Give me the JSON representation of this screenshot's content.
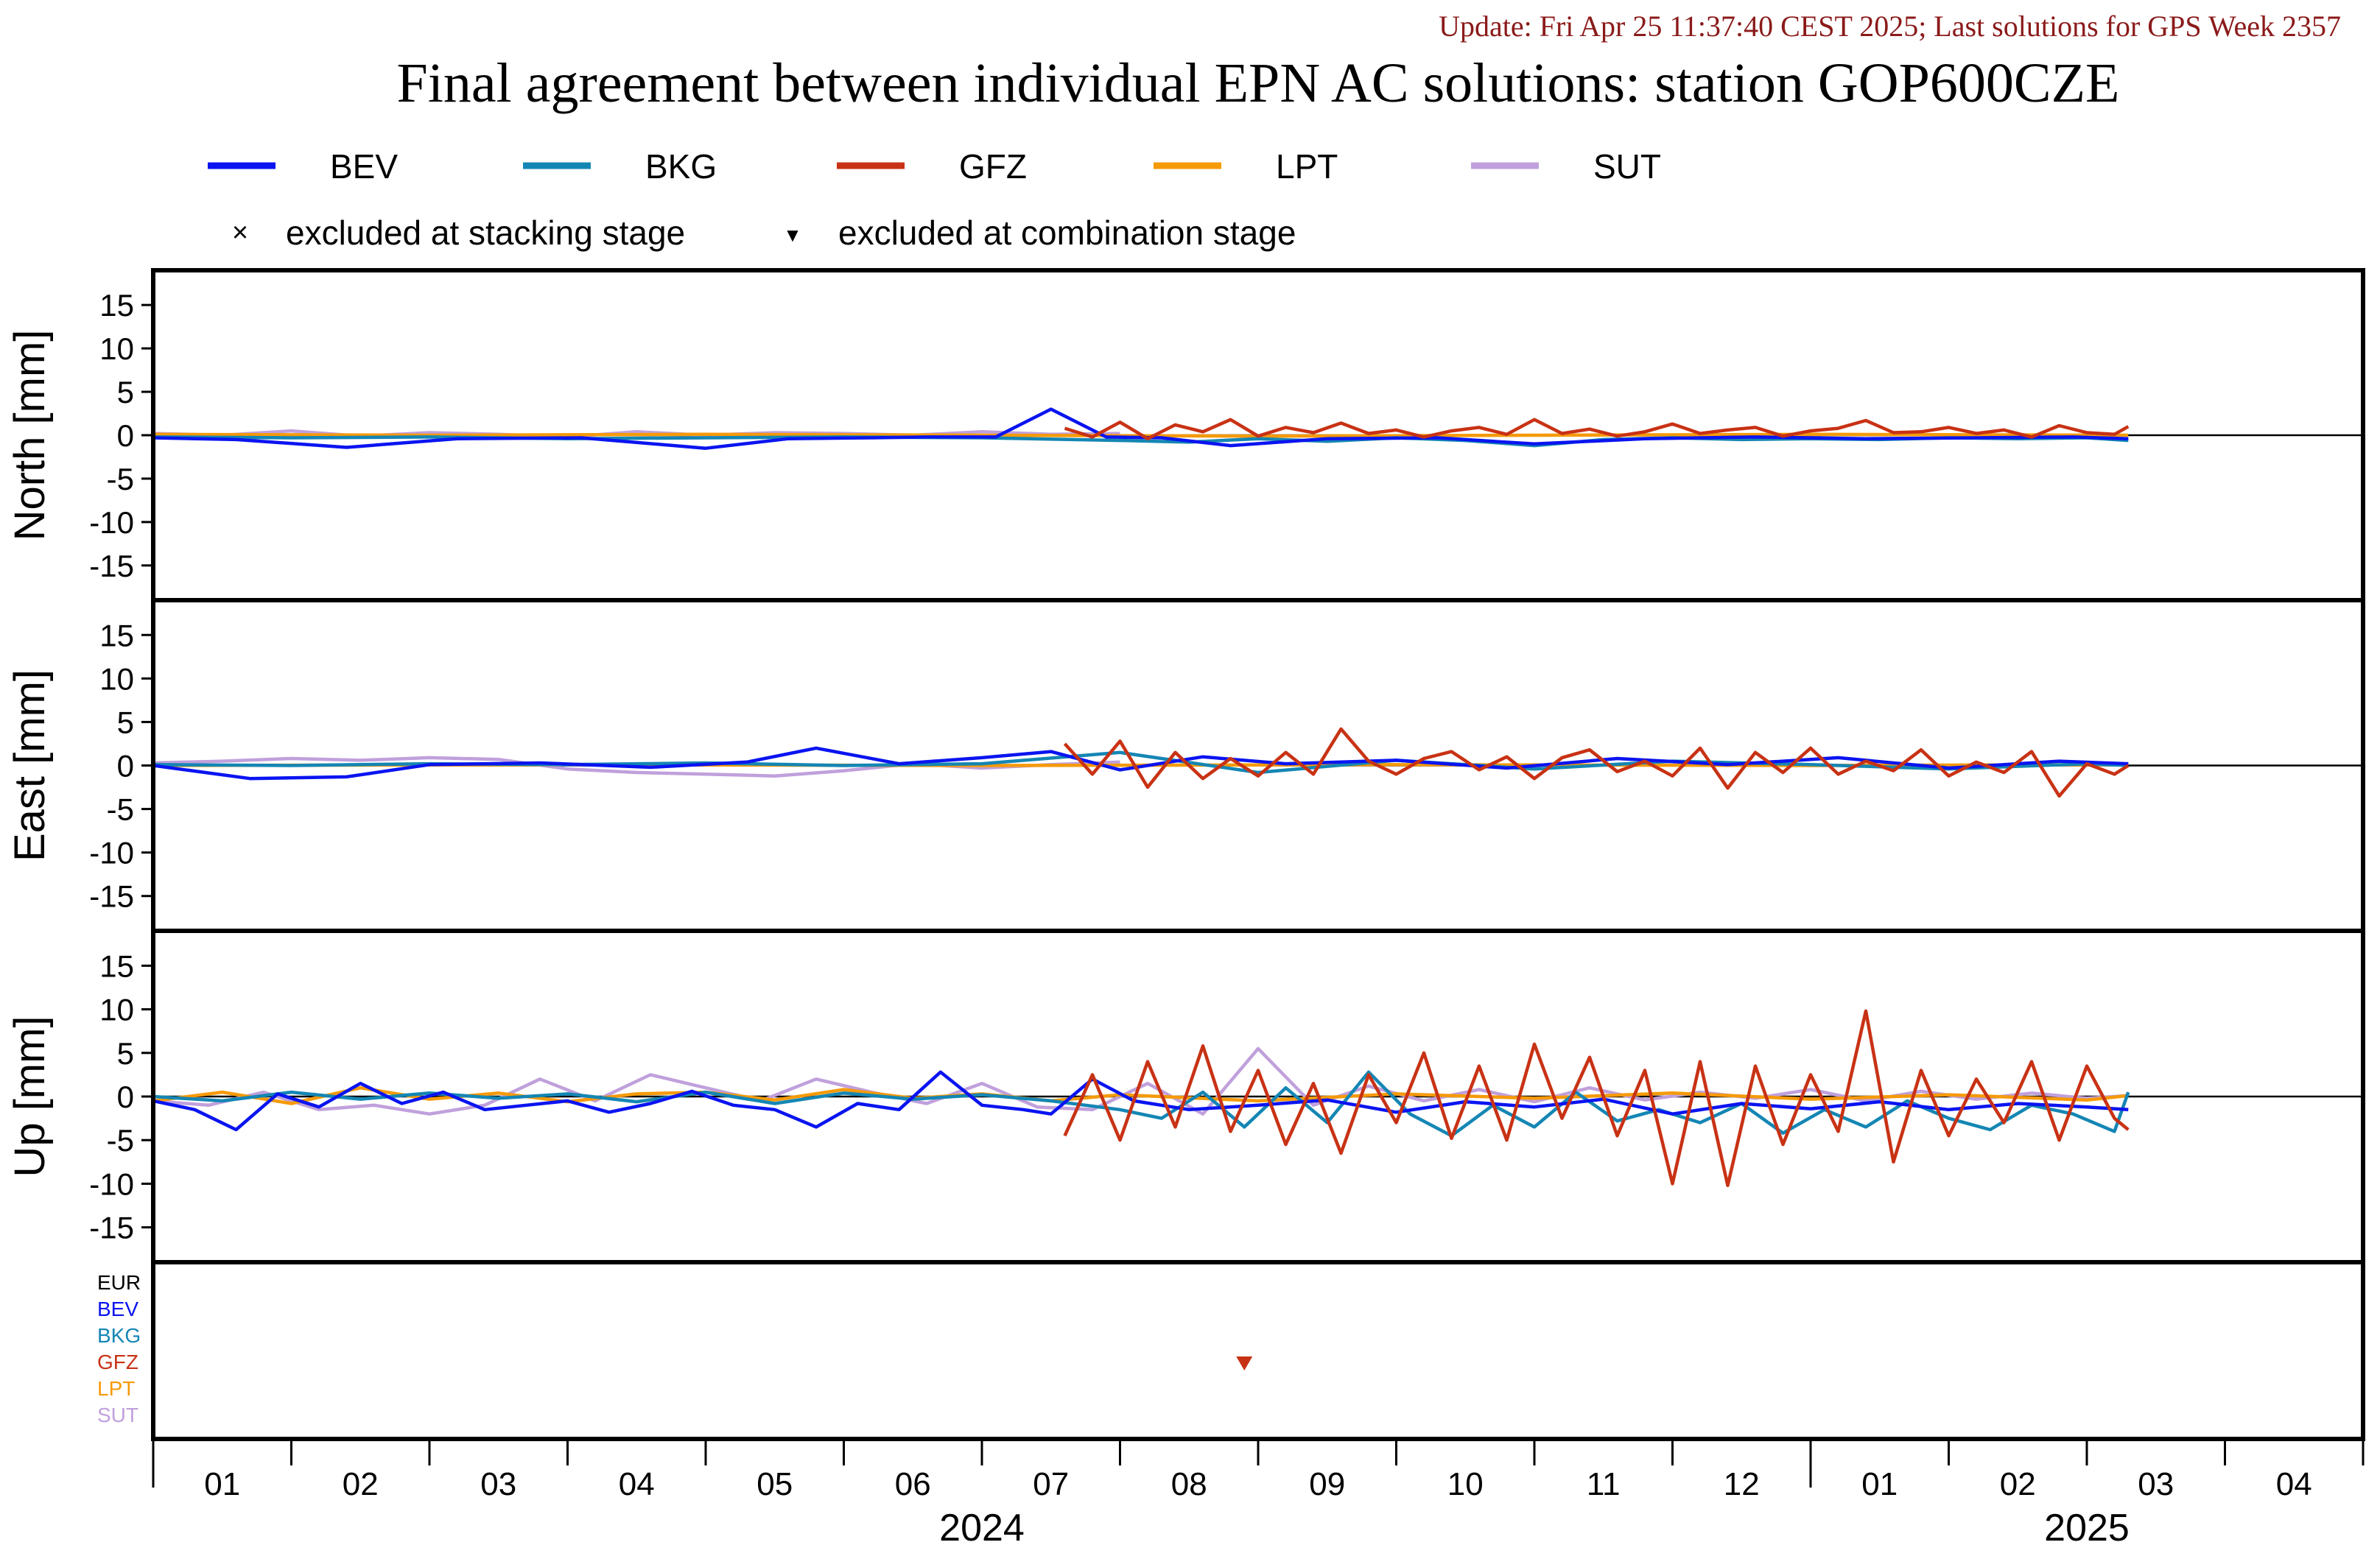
{
  "header": {
    "update": "Update: Fri Apr 25 11:37:40 CEST 2025; Last solutions for GPS Week 2357",
    "title": "Final agreement between individual EPN AC solutions: station GOP600CZE"
  },
  "colors": {
    "update": "#8b1a1a",
    "BEV": "#0a14f0",
    "BKG": "#1486b4",
    "GFZ": "#c83214",
    "LPT": "#f59a0a",
    "SUT": "#c0a0dc",
    "EUR": "#000000"
  },
  "legend": {
    "series": [
      "BEV",
      "BKG",
      "GFZ",
      "LPT",
      "SUT"
    ],
    "excluded_stacking": "excluded at stacking stage",
    "excluded_combination": "excluded at combination stage",
    "marker_x": "×",
    "marker_tri": "▼"
  },
  "chart_data": {
    "type": "line",
    "x_unit": "month",
    "x_range": [
      "2024-01",
      "2025-04"
    ],
    "month_ticks": [
      "01",
      "02",
      "03",
      "04",
      "05",
      "06",
      "07",
      "08",
      "09",
      "10",
      "11",
      "12",
      "01",
      "02",
      "03",
      "04"
    ],
    "year_labels": [
      "2024",
      "2025"
    ],
    "y_ticks": [
      15,
      10,
      5,
      0,
      -5,
      -10,
      -15
    ],
    "ylim": [
      -19,
      19
    ],
    "panels": [
      {
        "id": "north",
        "ylabel": "North [mm]",
        "series": [
          {
            "name": "BEV",
            "x": [
              0.0,
              0.6,
              1.4,
              2.2,
              3.1,
              4.0,
              4.6,
              5.2,
              5.6,
              6.1,
              6.5,
              6.9,
              7.3,
              7.8,
              8.5,
              9.3,
              10.0,
              10.8,
              11.6,
              12.4,
              13.2,
              13.9,
              14.3
            ],
            "y": [
              -0.3,
              -0.5,
              -1.4,
              -0.4,
              -0.3,
              -1.5,
              -0.4,
              -0.3,
              -0.2,
              -0.2,
              3.0,
              -0.2,
              -0.3,
              -1.2,
              -0.4,
              -0.3,
              -1.0,
              -0.4,
              -0.2,
              -0.4,
              -0.3,
              -0.2,
              -0.4
            ]
          },
          {
            "name": "BKG",
            "x": [
              0.0,
              1.0,
              2.0,
              3.0,
              4.0,
              5.0,
              6.0,
              7.0,
              7.5,
              8.0,
              8.5,
              9.0,
              9.5,
              10.0,
              10.5,
              11.0,
              11.5,
              12.0,
              12.5,
              13.0,
              13.5,
              14.0,
              14.3
            ],
            "y": [
              -0.2,
              -0.3,
              -0.2,
              -0.4,
              -0.3,
              -0.2,
              -0.3,
              -0.6,
              -0.8,
              -0.4,
              -0.7,
              -0.3,
              -0.6,
              -1.2,
              -0.5,
              -0.3,
              -0.5,
              -0.4,
              -0.5,
              -0.3,
              -0.4,
              -0.3,
              -0.6
            ]
          },
          {
            "name": "GFZ",
            "x": [
              6.6,
              6.8,
              7.0,
              7.2,
              7.4,
              7.6,
              7.8,
              8.0,
              8.2,
              8.4,
              8.6,
              8.8,
              9.0,
              9.2,
              9.4,
              9.6,
              9.8,
              10.0,
              10.2,
              10.4,
              10.6,
              10.8,
              11.0,
              11.2,
              11.4,
              11.6,
              11.8,
              12.0,
              12.2,
              12.4,
              12.6,
              12.8,
              13.0,
              13.2,
              13.4,
              13.6,
              13.8,
              14.0,
              14.2,
              14.3
            ],
            "y": [
              0.8,
              -0.2,
              1.5,
              -0.4,
              1.2,
              0.4,
              1.8,
              -0.1,
              0.9,
              0.3,
              1.4,
              0.2,
              0.6,
              -0.2,
              0.5,
              0.9,
              0.1,
              1.8,
              0.2,
              0.7,
              -0.1,
              0.4,
              1.3,
              0.2,
              0.6,
              0.9,
              -0.1,
              0.5,
              0.8,
              1.7,
              0.3,
              0.4,
              0.9,
              0.2,
              0.6,
              -0.2,
              1.1,
              0.3,
              0.1,
              1.0
            ]
          },
          {
            "name": "LPT",
            "x": [
              0.0,
              2.0,
              4.0,
              6.0,
              8.0,
              10.0,
              12.0,
              14.3
            ],
            "y": [
              0.1,
              0.0,
              0.1,
              0.0,
              -0.1,
              0.0,
              0.1,
              0.0
            ]
          },
          {
            "name": "SUT",
            "x": [
              0.0,
              0.5,
              1.0,
              1.5,
              2.0,
              2.5,
              3.0,
              3.5,
              4.0,
              4.5,
              5.0,
              5.5,
              6.0,
              6.5,
              7.0
            ],
            "y": [
              0.2,
              0.0,
              0.5,
              -0.1,
              0.3,
              0.1,
              -0.2,
              0.4,
              0.0,
              0.3,
              0.2,
              0.0,
              0.4,
              0.1,
              0.2
            ]
          }
        ]
      },
      {
        "id": "east",
        "ylabel": "East [mm]",
        "series": [
          {
            "name": "BEV",
            "x": [
              0.0,
              0.7,
              1.4,
              2.0,
              2.8,
              3.6,
              4.3,
              4.8,
              5.4,
              6.0,
              6.5,
              7.0,
              7.6,
              8.2,
              9.0,
              9.8,
              10.6,
              11.4,
              12.2,
              13.0,
              13.8,
              14.3
            ],
            "y": [
              0.0,
              -1.5,
              -1.3,
              0.1,
              0.3,
              -0.2,
              0.4,
              2.0,
              0.2,
              0.9,
              1.6,
              -0.5,
              1.0,
              0.2,
              0.6,
              -0.3,
              0.8,
              0.1,
              0.9,
              -0.3,
              0.5,
              0.2
            ]
          },
          {
            "name": "BKG",
            "x": [
              0.0,
              1.0,
              2.0,
              3.0,
              4.0,
              5.0,
              6.0,
              7.0,
              8.0,
              9.0,
              10.0,
              11.0,
              12.0,
              13.0,
              14.0,
              14.3
            ],
            "y": [
              0.1,
              0.0,
              0.2,
              0.1,
              0.3,
              0.0,
              0.2,
              1.5,
              -0.8,
              0.6,
              -0.4,
              0.5,
              0.1,
              -0.4,
              0.2,
              0.0
            ]
          },
          {
            "name": "GFZ",
            "x": [
              6.6,
              6.8,
              7.0,
              7.2,
              7.4,
              7.6,
              7.8,
              8.0,
              8.2,
              8.4,
              8.6,
              8.8,
              9.0,
              9.2,
              9.4,
              9.6,
              9.8,
              10.0,
              10.2,
              10.4,
              10.6,
              10.8,
              11.0,
              11.2,
              11.4,
              11.6,
              11.8,
              12.0,
              12.2,
              12.4,
              12.6,
              12.8,
              13.0,
              13.2,
              13.4,
              13.6,
              13.8,
              14.0,
              14.2,
              14.3
            ],
            "y": [
              2.5,
              -1.0,
              2.8,
              -2.5,
              1.5,
              -1.5,
              0.8,
              -1.2,
              1.5,
              -1.0,
              4.2,
              0.5,
              -1.0,
              0.8,
              1.6,
              -0.5,
              1.0,
              -1.5,
              0.9,
              1.8,
              -0.7,
              0.5,
              -1.2,
              2.0,
              -2.6,
              1.5,
              -0.8,
              2.0,
              -1.0,
              0.5,
              -0.6,
              1.8,
              -1.2,
              0.4,
              -0.8,
              1.6,
              -3.5,
              0.2,
              -1.0,
              0.0
            ]
          },
          {
            "name": "LPT",
            "x": [
              0.0,
              3.0,
              6.0,
              9.0,
              12.0,
              14.3
            ],
            "y": [
              0.0,
              0.1,
              0.0,
              0.1,
              0.0,
              0.1
            ]
          },
          {
            "name": "SUT",
            "x": [
              0.0,
              0.5,
              1.0,
              1.5,
              2.0,
              2.5,
              3.0,
              3.5,
              4.0,
              4.5,
              5.0,
              5.5,
              6.0,
              6.5,
              7.0
            ],
            "y": [
              0.3,
              0.5,
              0.8,
              0.6,
              0.9,
              0.7,
              -0.4,
              -0.8,
              -1.0,
              -1.2,
              -0.6,
              0.2,
              -0.3,
              0.1,
              0.4
            ]
          }
        ]
      },
      {
        "id": "up",
        "ylabel": "Up [mm]",
        "series": [
          {
            "name": "BEV",
            "x": [
              0.0,
              0.3,
              0.6,
              0.9,
              1.2,
              1.5,
              1.8,
              2.1,
              2.4,
              2.7,
              3.0,
              3.3,
              3.6,
              3.9,
              4.2,
              4.5,
              4.8,
              5.1,
              5.4,
              5.7,
              6.0,
              6.3,
              6.5,
              6.8,
              7.1,
              7.5,
              8.0,
              8.5,
              9.0,
              9.5,
              10.0,
              10.5,
              11.0,
              11.5,
              12.0,
              12.5,
              13.0,
              13.5,
              14.0,
              14.3
            ],
            "y": [
              -0.5,
              -1.5,
              -3.8,
              0.3,
              -1.2,
              1.5,
              -0.8,
              0.5,
              -1.5,
              -1.0,
              -0.5,
              -1.8,
              -0.8,
              0.6,
              -1.0,
              -1.5,
              -3.5,
              -0.8,
              -1.5,
              2.8,
              -1.0,
              -1.5,
              -2.0,
              2.0,
              -0.5,
              -1.5,
              -1.0,
              -0.4,
              -1.8,
              -0.6,
              -1.2,
              -0.3,
              -2.0,
              -0.8,
              -1.4,
              -0.6,
              -1.5,
              -0.8,
              -1.2,
              -1.5
            ]
          },
          {
            "name": "BKG",
            "x": [
              0.0,
              0.5,
              1.0,
              1.5,
              2.0,
              2.5,
              3.0,
              3.5,
              4.0,
              4.5,
              5.0,
              5.5,
              6.0,
              6.5,
              7.0,
              7.3,
              7.6,
              7.9,
              8.2,
              8.5,
              8.8,
              9.1,
              9.4,
              9.7,
              10.0,
              10.3,
              10.6,
              10.9,
              11.2,
              11.5,
              11.8,
              12.1,
              12.4,
              12.7,
              13.0,
              13.3,
              13.6,
              13.9,
              14.2,
              14.3
            ],
            "y": [
              0.0,
              -0.5,
              0.5,
              -0.3,
              0.4,
              -0.2,
              0.3,
              -0.6,
              0.5,
              -0.8,
              0.4,
              -0.3,
              0.2,
              -0.5,
              -1.5,
              -2.5,
              0.5,
              -3.5,
              1.0,
              -3.0,
              2.8,
              -2.0,
              -4.5,
              -1.0,
              -3.5,
              0.5,
              -2.8,
              -1.5,
              -3.0,
              -0.8,
              -4.2,
              -1.5,
              -3.5,
              -0.5,
              -2.5,
              -3.8,
              -1.0,
              -2.0,
              -4.0,
              0.5
            ]
          },
          {
            "name": "GFZ",
            "x": [
              6.6,
              6.8,
              7.0,
              7.2,
              7.4,
              7.6,
              7.8,
              8.0,
              8.2,
              8.4,
              8.6,
              8.8,
              9.0,
              9.2,
              9.4,
              9.6,
              9.8,
              10.0,
              10.2,
              10.4,
              10.6,
              10.8,
              11.0,
              11.2,
              11.4,
              11.6,
              11.8,
              12.0,
              12.2,
              12.4,
              12.6,
              12.8,
              13.0,
              13.2,
              13.4,
              13.6,
              13.8,
              14.0,
              14.2,
              14.3
            ],
            "y": [
              -4.5,
              2.5,
              -5.0,
              4.0,
              -3.5,
              5.8,
              -4.0,
              3.0,
              -5.5,
              1.5,
              -6.5,
              2.5,
              -3.0,
              5.0,
              -4.8,
              3.5,
              -5.0,
              6.0,
              -2.5,
              4.5,
              -4.5,
              3.0,
              -10.0,
              4.0,
              -10.2,
              3.5,
              -5.5,
              2.5,
              -4.0,
              9.8,
              -7.5,
              3.0,
              -4.5,
              2.0,
              -3.0,
              4.0,
              -5.0,
              3.5,
              -2.5,
              -3.8
            ]
          },
          {
            "name": "LPT",
            "x": [
              0.0,
              0.5,
              1.0,
              1.5,
              2.0,
              2.5,
              3.0,
              3.5,
              4.0,
              4.5,
              5.0,
              5.5,
              6.0,
              6.5,
              7.0,
              8.0,
              9.0,
              10.0,
              11.0,
              12.0,
              13.0,
              14.0,
              14.3
            ],
            "y": [
              -0.5,
              0.5,
              -0.8,
              1.0,
              -0.3,
              0.4,
              -0.6,
              0.3,
              0.5,
              -0.4,
              0.8,
              -0.2,
              0.3,
              -0.5,
              0.2,
              -0.5,
              0.3,
              -0.2,
              0.4,
              -0.3,
              0.2,
              -0.4,
              0.1
            ]
          },
          {
            "name": "SUT",
            "x": [
              0.0,
              0.4,
              0.8,
              1.2,
              1.6,
              2.0,
              2.4,
              2.8,
              3.2,
              3.6,
              4.0,
              4.4,
              4.8,
              5.2,
              5.6,
              6.0,
              6.4,
              6.8,
              7.2,
              7.6,
              8.0,
              8.4,
              8.8,
              9.2,
              9.6,
              10.0,
              10.4,
              10.8,
              11.2,
              11.6,
              12.0,
              12.4,
              12.8,
              13.2,
              13.6,
              14.0,
              14.3
            ],
            "y": [
              -0.5,
              -1.0,
              0.5,
              -1.5,
              -1.0,
              -2.0,
              -1.0,
              2.0,
              -0.5,
              2.5,
              1.0,
              -0.5,
              2.0,
              0.5,
              -0.8,
              1.5,
              -1.2,
              -1.5,
              1.5,
              -2.0,
              5.5,
              -1.0,
              1.2,
              -0.5,
              0.8,
              -0.6,
              1.0,
              -0.4,
              0.5,
              -0.2,
              0.8,
              -0.5,
              0.6,
              -0.3,
              0.4,
              -0.2,
              0.1
            ]
          }
        ]
      }
    ],
    "exclusion_panel": {
      "row_labels": [
        "EUR",
        "BEV",
        "BKG",
        "GFZ",
        "LPT",
        "SUT"
      ],
      "markers": [
        {
          "ac": "GFZ",
          "type": "combination",
          "x": 7.9
        }
      ]
    }
  }
}
